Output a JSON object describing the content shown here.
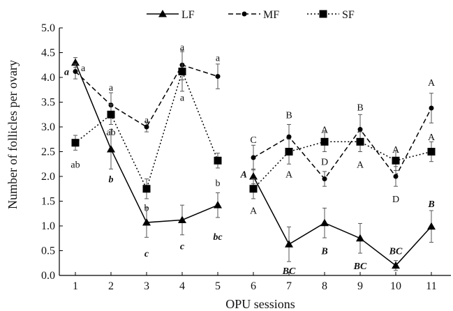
{
  "chart_data": {
    "type": "line",
    "x": [
      1,
      2,
      3,
      4,
      5,
      6,
      7,
      8,
      9,
      10,
      11
    ],
    "segments": [
      [
        1,
        5
      ],
      [
        6,
        11
      ]
    ],
    "xlabel": "OPU sessions",
    "ylabel": "Number of follicles per ovary",
    "xlim": [
      0.5,
      11.5
    ],
    "ylim": [
      0.0,
      5.0
    ],
    "yticks": [
      "0.0",
      "0.5",
      "1.0",
      "1.5",
      "2.0",
      "2.5",
      "3.0",
      "3.5",
      "4.0",
      "4.5",
      "5.0"
    ],
    "xticks": [
      "1",
      "2",
      "3",
      "4",
      "5",
      "6",
      "7",
      "8",
      "9",
      "10",
      "11"
    ],
    "legend_position": "top-center",
    "series": [
      {
        "name": "LF",
        "marker": "triangle",
        "dash": "solid",
        "color": "#000000",
        "values": [
          4.3,
          2.55,
          1.07,
          1.12,
          1.42,
          2.0,
          0.63,
          1.06,
          0.75,
          0.2,
          0.99
        ],
        "errors": [
          0.1,
          0.4,
          0.3,
          0.3,
          0.25,
          0.15,
          0.35,
          0.3,
          0.3,
          0.1,
          0.32
        ]
      },
      {
        "name": "MF",
        "marker": "circle",
        "dash": "dashed",
        "color": "#000000",
        "values": [
          4.12,
          3.44,
          3.0,
          4.25,
          4.02,
          2.38,
          2.8,
          1.95,
          2.95,
          2.0,
          3.38
        ],
        "errors": [
          0.15,
          0.25,
          0.1,
          0.3,
          0.25,
          0.25,
          0.25,
          0.15,
          0.3,
          0.2,
          0.3
        ]
      },
      {
        "name": "SF",
        "marker": "square",
        "dash": "dotted",
        "color": "#000000",
        "values": [
          2.68,
          3.25,
          1.75,
          4.12,
          2.32,
          1.75,
          2.5,
          2.7,
          2.7,
          2.32,
          2.5
        ],
        "errors": [
          0.15,
          0.2,
          0.2,
          0.4,
          0.15,
          0.2,
          0.25,
          0.2,
          0.2,
          0.2,
          0.2
        ]
      }
    ],
    "annotations": [
      {
        "x": 1,
        "y": 4.12,
        "text": "a",
        "style": "bold-italic",
        "anchor": "left"
      },
      {
        "x": 1,
        "y": 4.2,
        "text": "a",
        "style": "normal",
        "anchor": "right"
      },
      {
        "x": 1,
        "y": 2.25,
        "text": "ab",
        "style": "normal",
        "anchor": "center"
      },
      {
        "x": 2,
        "y": 3.8,
        "text": "a",
        "style": "normal",
        "anchor": "center"
      },
      {
        "x": 2,
        "y": 2.9,
        "text": "ab",
        "style": "normal",
        "anchor": "center"
      },
      {
        "x": 2,
        "y": 1.95,
        "text": "b",
        "style": "bold-italic",
        "anchor": "center"
      },
      {
        "x": 3,
        "y": 3.15,
        "text": "a",
        "style": "normal",
        "anchor": "center"
      },
      {
        "x": 3,
        "y": 1.37,
        "text": "b",
        "style": "normal",
        "anchor": "center"
      },
      {
        "x": 3,
        "y": 0.45,
        "text": "c",
        "style": "bold-italic",
        "anchor": "center"
      },
      {
        "x": 4,
        "y": 4.62,
        "text": "a",
        "style": "normal",
        "anchor": "center"
      },
      {
        "x": 4,
        "y": 3.6,
        "text": "a",
        "style": "normal",
        "anchor": "center"
      },
      {
        "x": 4,
        "y": 0.6,
        "text": "c",
        "style": "bold-italic",
        "anchor": "center"
      },
      {
        "x": 5,
        "y": 4.4,
        "text": "a",
        "style": "normal",
        "anchor": "center"
      },
      {
        "x": 5,
        "y": 1.87,
        "text": "b",
        "style": "normal",
        "anchor": "center"
      },
      {
        "x": 5,
        "y": 0.79,
        "text": "bc",
        "style": "bold-italic",
        "anchor": "center"
      },
      {
        "x": 6,
        "y": 2.75,
        "text": "C",
        "style": "normal",
        "anchor": "center"
      },
      {
        "x": 6,
        "y": 2.05,
        "text": "A",
        "style": "bold-italic",
        "anchor": "left"
      },
      {
        "x": 6,
        "y": 1.32,
        "text": "A",
        "style": "normal",
        "anchor": "center"
      },
      {
        "x": 7,
        "y": 3.25,
        "text": "B",
        "style": "normal",
        "anchor": "center"
      },
      {
        "x": 7,
        "y": 2.05,
        "text": "A",
        "style": "normal",
        "anchor": "center"
      },
      {
        "x": 7,
        "y": 0.1,
        "text": "BC",
        "style": "bold-italic",
        "anchor": "center"
      },
      {
        "x": 8,
        "y": 2.95,
        "text": "A",
        "style": "normal",
        "anchor": "center"
      },
      {
        "x": 8,
        "y": 2.3,
        "text": "D",
        "style": "normal",
        "anchor": "center"
      },
      {
        "x": 8,
        "y": 0.5,
        "text": "B",
        "style": "bold-italic",
        "anchor": "center"
      },
      {
        "x": 9,
        "y": 3.4,
        "text": "B",
        "style": "normal",
        "anchor": "center"
      },
      {
        "x": 9,
        "y": 2.25,
        "text": "A",
        "style": "normal",
        "anchor": "center"
      },
      {
        "x": 9,
        "y": 0.2,
        "text": "BC",
        "style": "bold-italic",
        "anchor": "center"
      },
      {
        "x": 10,
        "y": 2.55,
        "text": "A",
        "style": "normal",
        "anchor": "center"
      },
      {
        "x": 10,
        "y": 1.55,
        "text": "D",
        "style": "normal",
        "anchor": "center"
      },
      {
        "x": 10,
        "y": 0.5,
        "text": "BC",
        "style": "bold-italic",
        "anchor": "center"
      },
      {
        "x": 11,
        "y": 3.9,
        "text": "A",
        "style": "normal",
        "anchor": "center"
      },
      {
        "x": 11,
        "y": 2.8,
        "text": "A",
        "style": "normal",
        "anchor": "center"
      },
      {
        "x": 11,
        "y": 1.45,
        "text": "B",
        "style": "bold-italic",
        "anchor": "center"
      }
    ]
  }
}
